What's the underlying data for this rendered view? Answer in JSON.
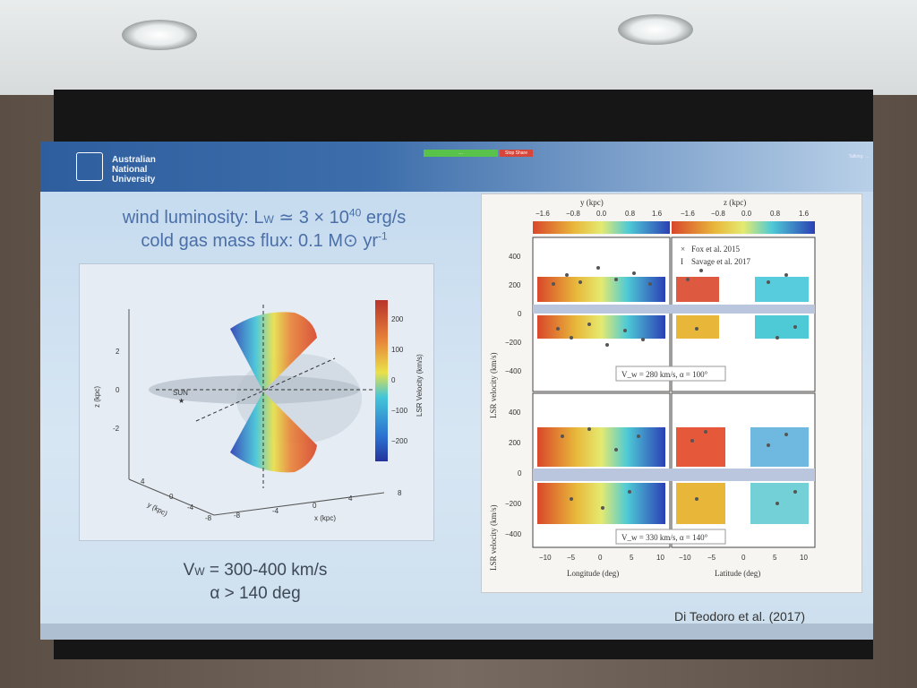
{
  "slide": {
    "logo_text": "Australian\nNational\nUniversity",
    "share_green_label": "…",
    "share_red_label": "Stop Share",
    "talking_label": "Talking: …",
    "headline_line1": "wind luminosity: L",
    "headline_line1_sub": "W",
    "headline_line1_rest": " ≃ 3 × 10",
    "headline_line1_sup": "40",
    "headline_line1_unit": " erg/s",
    "headline_line2": "cold gas mass flux: 0.1 M",
    "headline_line2_sun": "⊙",
    "headline_line2_rest": " yr",
    "headline_line2_sup": "-1",
    "formula_line1": "V",
    "formula_line1_sub": "W",
    "formula_line1_rest": " = 300-400 km/s",
    "formula_line2": "α > 140 deg",
    "citation": "Di Teodoro et al. (2017)"
  },
  "left_plot": {
    "sun_label": "SUN",
    "z_label": "z (kpc)",
    "y_label": "y (kpc)",
    "x_label": "x (kpc)",
    "colorbar_label": "LSR Velocity (km/s)",
    "z_ticks": [
      "2",
      "0",
      "-2"
    ],
    "y_ticks": [
      "4",
      "0",
      "-4",
      "-8"
    ],
    "x_ticks": [
      "-8",
      "-4",
      "0",
      "4",
      "8"
    ],
    "colorbar_ticks": [
      "200",
      "100",
      "0",
      "−100",
      "−200"
    ],
    "colors": {
      "red": "#d9472b",
      "yellow": "#e9e14a",
      "cyan": "#44c6d8",
      "blue": "#2b3fb4"
    }
  },
  "right_plot": {
    "top_colorbar_left_label": "y (kpc)",
    "top_colorbar_right_label": "z (kpc)",
    "top_colorbar_ticks_left": [
      "−1.6",
      "−0.8",
      "0.0",
      "0.8",
      "1.6"
    ],
    "top_colorbar_ticks_right": [
      "−1.6",
      "−0.8",
      "0.0",
      "0.8",
      "1.6"
    ],
    "y_axis_label": "LSR velocity (km/s)",
    "y_ticks": [
      "400",
      "200",
      "0",
      "−200",
      "−400"
    ],
    "legend_fox": "Fox et al. 2015",
    "legend_savage": "Savage et al. 2017",
    "panel_top_label": "V_w = 280 km/s, α = 100°",
    "panel_bottom_label": "V_w = 330 km/s, α = 140°",
    "x_ticks": [
      "−10",
      "−5",
      "0",
      "5",
      "10",
      "−10",
      "−5",
      "0",
      "5",
      "10"
    ],
    "x_label_left": "Longitude (deg)",
    "x_label_right": "Latitude (deg)"
  }
}
